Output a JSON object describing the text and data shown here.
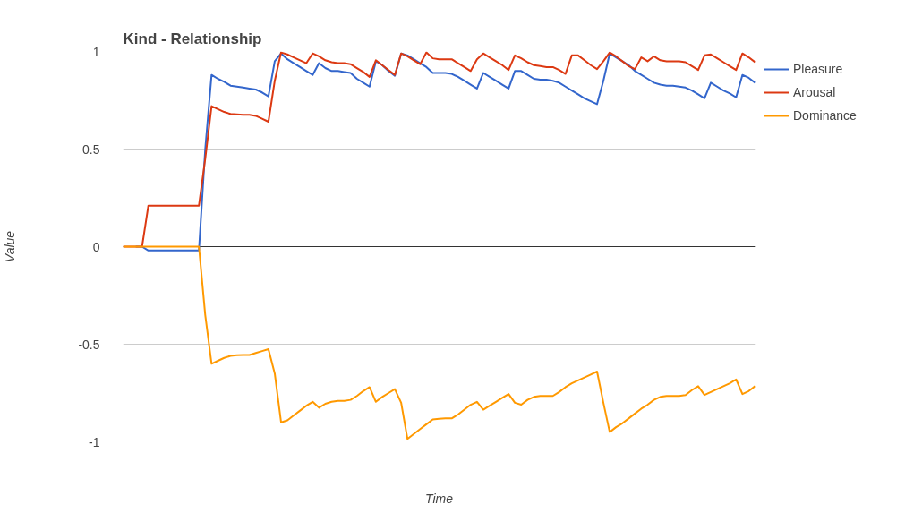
{
  "chart_data": {
    "type": "line",
    "title": "Kind - Relationship",
    "xlabel": "Time",
    "ylabel": "Value",
    "categories": [
      null,
      null,
      null,
      null,
      null,
      null,
      null,
      null,
      null,
      null,
      null,
      null,
      null,
      null,
      null,
      null,
      null,
      null,
      null,
      null,
      null,
      null,
      null,
      null,
      null,
      null,
      null,
      null,
      null,
      null,
      null,
      null,
      null,
      null,
      null,
      null,
      null,
      null,
      null,
      null,
      null,
      null,
      null,
      null,
      null,
      null,
      null,
      null,
      null,
      null,
      null,
      null,
      null,
      null,
      null,
      null,
      null,
      null,
      null,
      null,
      null,
      null,
      null,
      null,
      null,
      null,
      null,
      null,
      null,
      null,
      null,
      null,
      null,
      null,
      null,
      null,
      null,
      null,
      null,
      null,
      null,
      null,
      null,
      null,
      null,
      null,
      null,
      null,
      null,
      null,
      null,
      null,
      null,
      null,
      null,
      null,
      null,
      null,
      null,
      null,
      null
    ],
    "series": [
      {
        "name": "Pleasure",
        "color": "#3366cc",
        "values": [
          null,
          null,
          0,
          0,
          -0.02,
          -0.02,
          -0.02,
          -0.02,
          -0.02,
          -0.02,
          -0.02,
          -0.02,
          -0.02,
          0.5,
          0.88,
          0.86,
          0.845,
          0.825,
          0.82,
          0.815,
          0.81,
          0.805,
          0.79,
          0.77,
          0.95,
          0.99,
          0.96,
          0.94,
          0.92,
          0.9,
          0.88,
          0.94,
          0.915,
          0.9,
          0.9,
          0.895,
          0.89,
          0.86,
          0.84,
          0.82,
          0.95,
          0.93,
          0.9,
          0.875,
          0.99,
          0.98,
          0.96,
          0.94,
          0.92,
          0.89,
          0.89,
          0.89,
          0.885,
          0.87,
          0.85,
          0.83,
          0.81,
          0.89,
          0.87,
          0.85,
          0.83,
          0.81,
          0.9,
          0.9,
          0.88,
          0.86,
          0.855,
          0.855,
          0.85,
          0.84,
          0.82,
          0.8,
          0.78,
          0.76,
          0.745,
          0.73,
          0.85,
          0.99,
          0.97,
          0.95,
          0.93,
          0.9,
          0.88,
          0.86,
          0.84,
          0.83,
          0.825,
          0.825,
          0.82,
          0.815,
          0.8,
          0.78,
          0.76,
          0.84,
          0.82,
          0.8,
          0.785,
          0.765,
          0.88,
          0.865,
          0.84
        ]
      },
      {
        "name": "Arousal",
        "color": "#dc3912",
        "values": [
          0,
          0,
          0,
          0,
          0.21,
          0.21,
          0.21,
          0.21,
          0.21,
          0.21,
          0.21,
          0.21,
          0.21,
          0.45,
          0.72,
          0.705,
          0.69,
          0.68,
          0.678,
          0.676,
          0.675,
          0.67,
          0.655,
          0.64,
          0.85,
          0.995,
          0.985,
          0.97,
          0.955,
          0.94,
          0.99,
          0.975,
          0.955,
          0.945,
          0.94,
          0.94,
          0.935,
          0.915,
          0.895,
          0.87,
          0.955,
          0.93,
          0.905,
          0.88,
          0.99,
          0.975,
          0.955,
          0.935,
          0.995,
          0.965,
          0.96,
          0.96,
          0.96,
          0.94,
          0.92,
          0.9,
          0.96,
          0.99,
          0.97,
          0.95,
          0.93,
          0.905,
          0.98,
          0.965,
          0.945,
          0.93,
          0.925,
          0.92,
          0.92,
          0.905,
          0.885,
          0.98,
          0.98,
          0.955,
          0.93,
          0.91,
          0.95,
          0.995,
          0.975,
          0.95,
          0.925,
          0.91,
          0.97,
          0.95,
          0.975,
          0.955,
          0.95,
          0.95,
          0.95,
          0.945,
          0.925,
          0.905,
          0.98,
          0.985,
          0.965,
          0.945,
          0.925,
          0.905,
          0.99,
          0.97,
          0.945
        ]
      },
      {
        "name": "Dominance",
        "color": "#ff9900",
        "values": [
          0,
          0,
          0,
          0,
          0,
          0,
          0,
          0,
          0,
          0,
          0,
          0,
          0,
          -0.35,
          -0.6,
          -0.585,
          -0.57,
          -0.56,
          -0.556,
          -0.555,
          -0.555,
          -0.545,
          -0.535,
          -0.525,
          -0.65,
          -0.9,
          -0.89,
          -0.865,
          -0.84,
          -0.815,
          -0.795,
          -0.825,
          -0.805,
          -0.795,
          -0.79,
          -0.79,
          -0.785,
          -0.765,
          -0.74,
          -0.72,
          -0.795,
          -0.77,
          -0.75,
          -0.73,
          -0.8,
          -0.985,
          -0.96,
          -0.935,
          -0.91,
          -0.885,
          -0.882,
          -0.88,
          -0.88,
          -0.86,
          -0.835,
          -0.81,
          -0.795,
          -0.835,
          -0.815,
          -0.795,
          -0.775,
          -0.755,
          -0.8,
          -0.81,
          -0.785,
          -0.77,
          -0.765,
          -0.765,
          -0.765,
          -0.745,
          -0.72,
          -0.7,
          -0.685,
          -0.67,
          -0.655,
          -0.64,
          -0.8,
          -0.95,
          -0.925,
          -0.905,
          -0.88,
          -0.855,
          -0.83,
          -0.81,
          -0.785,
          -0.77,
          -0.765,
          -0.765,
          -0.765,
          -0.76,
          -0.735,
          -0.715,
          -0.76,
          -0.745,
          -0.73,
          -0.715,
          -0.7,
          -0.68,
          -0.755,
          -0.74,
          -0.715
        ]
      }
    ],
    "ylim": [
      -1,
      1
    ],
    "yticks": [
      -1,
      -0.5,
      0,
      0.5,
      1
    ],
    "grid": "y",
    "legend": "right",
    "ref_lines": [
      {
        "axis": "y",
        "value": 0,
        "color": "#333333"
      }
    ]
  }
}
